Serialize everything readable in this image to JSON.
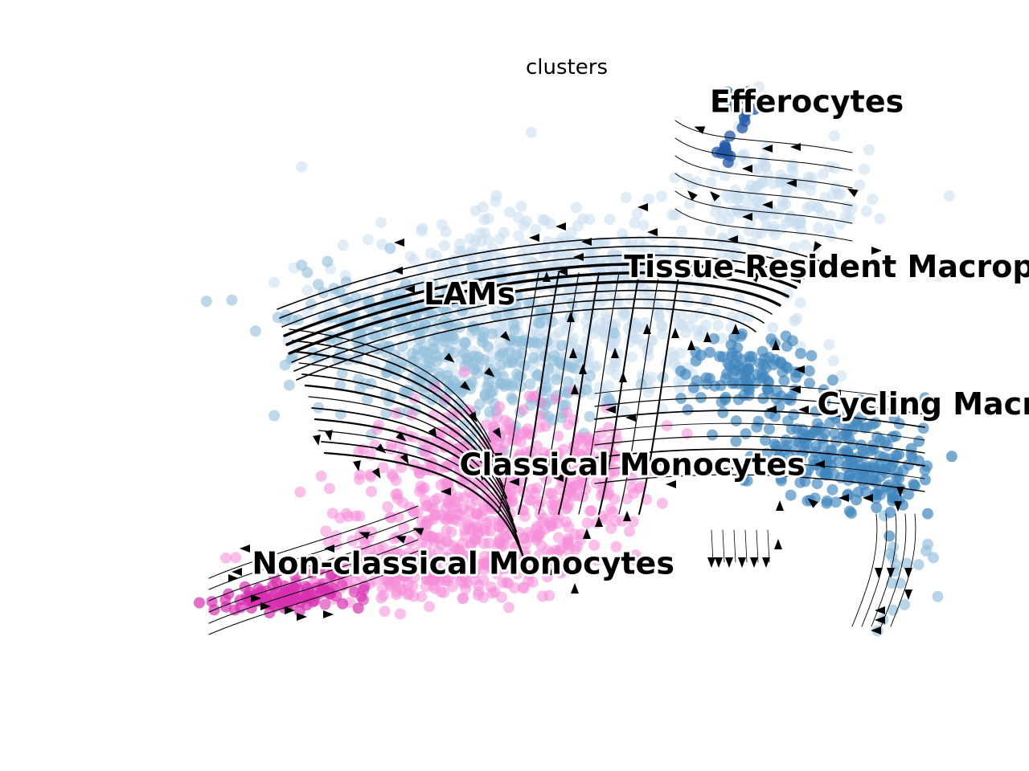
{
  "chart_data": {
    "type": "scatter",
    "title": "clusters",
    "xlabel": "",
    "ylabel": "",
    "grid": false,
    "axes_visible": false,
    "legend": "on data",
    "overlay": "velocity streamlines with arrowheads",
    "palette": {
      "Efferocytes": "#2157a4",
      "Tissue Resident Macrophages": "#c6dcef",
      "LAMs": "#8fbedb",
      "Cycling Macrophages": "#3f86bd",
      "Classical Monocytes": "#f68dd9",
      "Non-classical Monocytes": "#d92fb1"
    },
    "clusters": [
      {
        "name": "Efferocytes",
        "label_x": 0.7,
        "label_y": 0.95
      },
      {
        "name": "Tissue Resident Macrophages",
        "label_x": 0.58,
        "label_y": 0.65
      },
      {
        "name": "LAMs",
        "label_x": 0.3,
        "label_y": 0.6
      },
      {
        "name": "Cycling Macrophages",
        "label_x": 0.85,
        "label_y": 0.4
      },
      {
        "name": "Classical Monocytes",
        "label_x": 0.35,
        "label_y": 0.29
      },
      {
        "name": "Non-classical Monocytes",
        "label_x": 0.06,
        "label_y": 0.11
      }
    ]
  }
}
